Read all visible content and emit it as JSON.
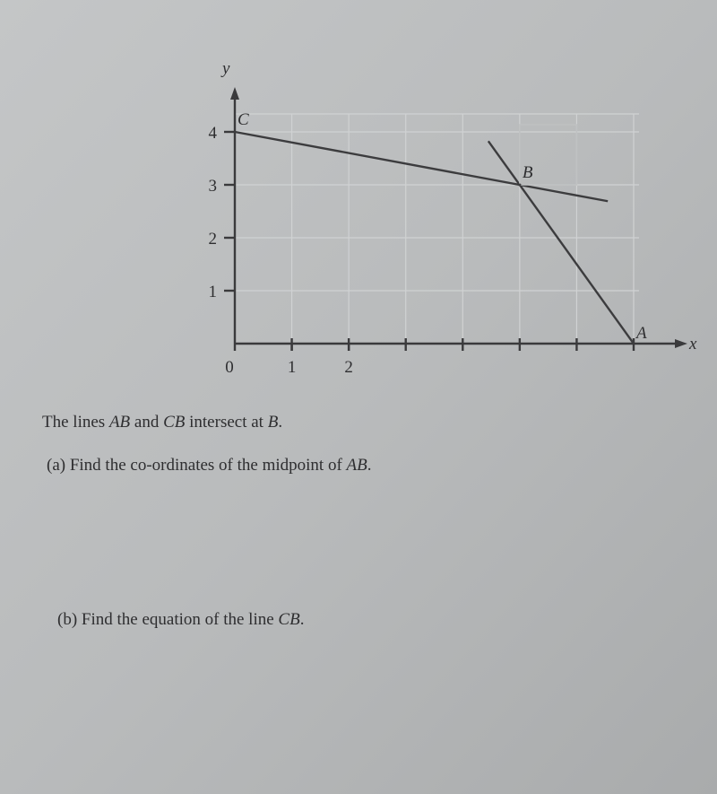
{
  "figure": {
    "x_label": "x",
    "y_label": "y",
    "xlim": [
      0,
      7
    ],
    "ylim": [
      0,
      4
    ],
    "xticks": [
      0,
      1,
      2
    ],
    "yticks": [
      1,
      2,
      3,
      4
    ],
    "points": [
      {
        "label": "C",
        "x": 0,
        "y": 4
      },
      {
        "label": "B",
        "x": 5,
        "y": 3
      },
      {
        "label": "A",
        "x": 7,
        "y": 0
      }
    ]
  },
  "text": {
    "statement": [
      "The lines ",
      "AB",
      " and ",
      "CB",
      " intersect at ",
      "B",
      "."
    ],
    "question_a": [
      "(a) Find the co-ordinates of the midpoint of ",
      "AB",
      "."
    ],
    "question_b": [
      "(b) Find the equation of the line ",
      "CB",
      "."
    ]
  }
}
